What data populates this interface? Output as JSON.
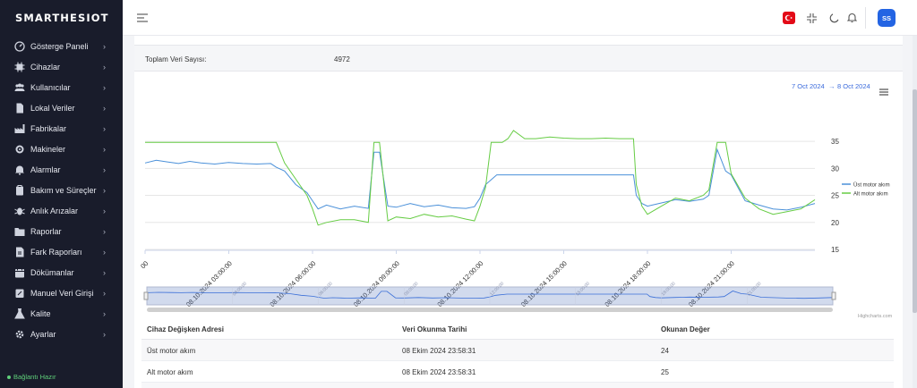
{
  "app": {
    "logo": "SMARTHESIOT"
  },
  "sidebar": {
    "items": [
      {
        "label": "Gösterge Paneli",
        "icon": "dashboard-icon"
      },
      {
        "label": "Cihazlar",
        "icon": "chip-icon"
      },
      {
        "label": "Kullanıcılar",
        "icon": "users-icon"
      },
      {
        "label": "Lokal Veriler",
        "icon": "document-icon"
      },
      {
        "label": "Fabrikalar",
        "icon": "factory-icon"
      },
      {
        "label": "Makineler",
        "icon": "gear-icon"
      },
      {
        "label": "Alarmlar",
        "icon": "bell-icon"
      },
      {
        "label": "Bakım ve Süreçler",
        "icon": "clipboard-icon"
      },
      {
        "label": "Anlık Arızalar",
        "icon": "bug-icon"
      },
      {
        "label": "Raporlar",
        "icon": "folder-icon"
      },
      {
        "label": "Fark Raporları",
        "icon": "report-icon"
      },
      {
        "label": "Dökümanlar",
        "icon": "calendar-icon"
      },
      {
        "label": "Manuel Veri Girişi",
        "icon": "edit-icon"
      },
      {
        "label": "Kalite",
        "icon": "flask-icon"
      },
      {
        "label": "Ayarlar",
        "icon": "settings-icon"
      }
    ],
    "status": "Bağlantı Hazır"
  },
  "topbar": {
    "avatar": "SS"
  },
  "stats": {
    "total_label": "Toplam Veri Sayısı:",
    "total_value": "4972"
  },
  "range": {
    "from": "7 Oct 2024",
    "arrow": "→",
    "to": "8 Oct 2024"
  },
  "chart_data": {
    "type": "line",
    "x_tick_labels": [
      "00",
      "08.10.2024 03:00:00",
      "08.10.2024 06:00:00",
      "08.10.2024 09:00:00",
      "08.10.2024 12:00:00",
      "08.10.2024 15:00:00",
      "08.10.2024 18:00:00",
      "08.10.2024 21:00:00"
    ],
    "y_ticks": [
      15,
      20,
      25,
      30,
      35
    ],
    "ylim": [
      15,
      37
    ],
    "xlim": [
      0,
      24
    ],
    "series": [
      {
        "name": "Üst motor akım",
        "color": "#4a90d9",
        "x": [
          0,
          0.4,
          0.8,
          1.2,
          1.6,
          2.0,
          2.5,
          3.0,
          3.5,
          4.0,
          4.5,
          4.7,
          5.0,
          5.4,
          5.8,
          6.0,
          6.2,
          6.5,
          7.0,
          7.5,
          8.0,
          8.2,
          8.4,
          8.7,
          9.0,
          9.5,
          10.0,
          10.5,
          11.0,
          11.5,
          11.8,
          12.0,
          12.2,
          12.6,
          13.0,
          14.0,
          15.0,
          16.0,
          17.5,
          17.6,
          17.8,
          18.0,
          18.5,
          19.0,
          19.5,
          20.0,
          20.2,
          20.5,
          20.8,
          21.0,
          21.5,
          22.0,
          22.5,
          23.0,
          23.5,
          24.0
        ],
        "y": [
          31,
          31.5,
          31.2,
          30.9,
          31.3,
          31.0,
          30.8,
          31.1,
          30.9,
          30.8,
          30.9,
          30.2,
          29.5,
          27.0,
          25.5,
          24.0,
          22.5,
          23.2,
          22.5,
          23.0,
          22.6,
          33.0,
          33.0,
          23.0,
          22.8,
          23.5,
          22.9,
          23.2,
          22.7,
          22.6,
          22.9,
          24.5,
          27.0,
          28.8,
          28.8,
          28.8,
          28.8,
          28.8,
          28.8,
          25.0,
          23.5,
          23.0,
          23.6,
          24.2,
          23.9,
          24.3,
          25.0,
          33.5,
          29.5,
          28.8,
          24.0,
          23.2,
          22.5,
          22.3,
          22.8,
          23.5
        ]
      },
      {
        "name": "Alt motor akım",
        "color": "#66cc44",
        "x": [
          0,
          0.5,
          1.0,
          1.5,
          2.0,
          2.5,
          3.0,
          3.5,
          4.0,
          4.5,
          4.7,
          5.0,
          5.4,
          5.8,
          6.0,
          6.2,
          6.5,
          7.0,
          7.5,
          8.0,
          8.2,
          8.4,
          8.7,
          9.0,
          9.5,
          10.0,
          10.5,
          11.0,
          11.5,
          11.8,
          12.0,
          12.2,
          12.4,
          12.8,
          13.0,
          13.2,
          13.6,
          14.0,
          14.5,
          15.0,
          15.5,
          16.0,
          16.5,
          17.0,
          17.5,
          17.6,
          17.8,
          18.0,
          18.5,
          19.0,
          19.5,
          20.0,
          20.2,
          20.5,
          20.8,
          21.0,
          21.5,
          22.0,
          22.5,
          23.0,
          23.5,
          24.0
        ],
        "y": [
          34.8,
          34.8,
          34.8,
          34.8,
          34.8,
          34.8,
          34.8,
          34.8,
          34.8,
          34.8,
          34.8,
          31.0,
          28.0,
          25.0,
          22.5,
          19.5,
          20.0,
          20.5,
          20.5,
          20.0,
          34.8,
          34.8,
          20.3,
          21.0,
          20.7,
          21.5,
          21.0,
          21.2,
          20.6,
          20.3,
          23.0,
          26.5,
          34.8,
          34.8,
          35.5,
          37.0,
          35.5,
          35.5,
          35.8,
          35.6,
          35.5,
          35.5,
          35.6,
          35.5,
          35.5,
          27.0,
          23.0,
          21.5,
          23.0,
          24.5,
          24.0,
          25.0,
          26.0,
          34.8,
          34.8,
          29.0,
          24.5,
          22.5,
          21.5,
          22.0,
          22.5,
          24.2
        ]
      }
    ],
    "legend_position": "right",
    "navigator_ticks": [
      "03:00:00",
      "06:00:00",
      "09:00:00",
      "12:00:00",
      "15:00:00",
      "18:00:00",
      "21:00:00"
    ],
    "credit": "Highcharts.com"
  },
  "table": {
    "headers": [
      "Cihaz Değişken Adresi",
      "Veri Okunma Tarihi",
      "Okunan Değer"
    ],
    "rows": [
      [
        "Üst motor akım",
        "08 Ekim 2024 23:58:31",
        "24"
      ],
      [
        "Alt motor akım",
        "08 Ekim 2024 23:58:31",
        "25"
      ]
    ]
  }
}
